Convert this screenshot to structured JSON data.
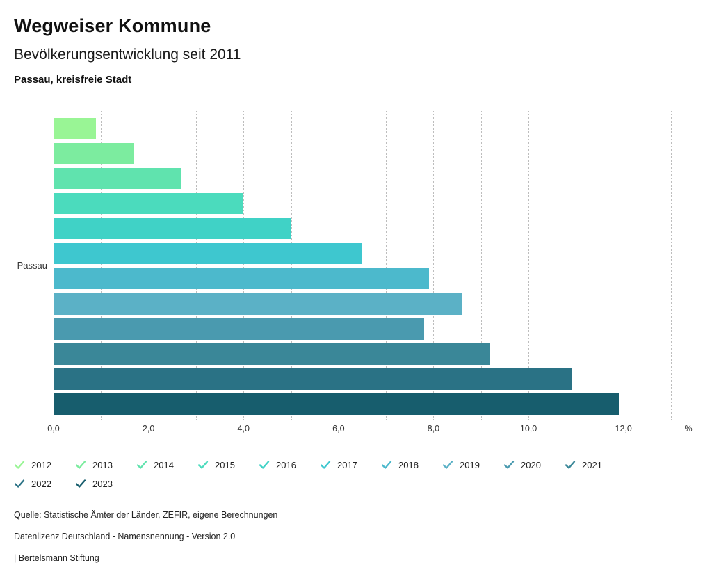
{
  "header": {
    "title": "Wegweiser Kommune",
    "subtitle": "Bevölkerungsentwicklung seit 2011",
    "region": "Passau, kreisfreie Stadt"
  },
  "chart_data": {
    "type": "bar",
    "orientation": "horizontal",
    "title": "Bevölkerungsentwicklung seit 2011",
    "category_label": "Passau",
    "unit": "%",
    "xlim": [
      0,
      13
    ],
    "gridline_step": 1,
    "grid": true,
    "x_ticks": [
      {
        "value": 0,
        "label": "0,0"
      },
      {
        "value": 2,
        "label": "2,0"
      },
      {
        "value": 4,
        "label": "4,0"
      },
      {
        "value": 6,
        "label": "6,0"
      },
      {
        "value": 8,
        "label": "8,0"
      },
      {
        "value": 10,
        "label": "10,0"
      },
      {
        "value": 12,
        "label": "12,0"
      }
    ],
    "series": [
      {
        "year": "2012",
        "value": 0.9,
        "color": "#99F595"
      },
      {
        "year": "2013",
        "value": 1.7,
        "color": "#7CEC9F"
      },
      {
        "year": "2014",
        "value": 2.7,
        "color": "#60E3AE"
      },
      {
        "year": "2015",
        "value": 4.0,
        "color": "#4BDBBD"
      },
      {
        "year": "2016",
        "value": 5.0,
        "color": "#40D2C6"
      },
      {
        "year": "2017",
        "value": 6.5,
        "color": "#3EC7CF"
      },
      {
        "year": "2018",
        "value": 7.9,
        "color": "#4CB9CC"
      },
      {
        "year": "2019",
        "value": 8.6,
        "color": "#5BB1C6"
      },
      {
        "year": "2020",
        "value": 7.8,
        "color": "#4A9AAF"
      },
      {
        "year": "2021",
        "value": 9.2,
        "color": "#3A8798"
      },
      {
        "year": "2022",
        "value": 10.9,
        "color": "#2A7285"
      },
      {
        "year": "2023",
        "value": 11.9,
        "color": "#175D6D"
      }
    ],
    "legend_items_per_row": 10
  },
  "footer": {
    "source": "Quelle: Statistische Ämter der Länder, ZEFIR, eigene Berechnungen",
    "license": "Datenlizenz Deutschland - Namensnennung - Version 2.0",
    "attribution": "| Bertelsmann Stiftung"
  }
}
